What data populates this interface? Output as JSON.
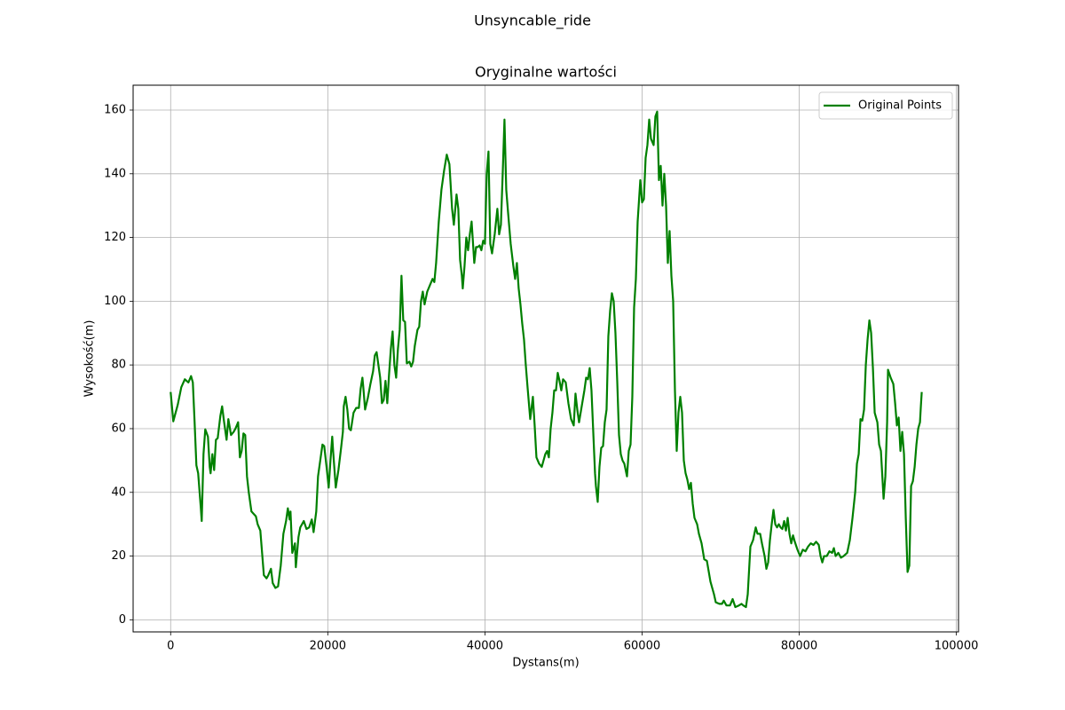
{
  "chart_data": {
    "type": "line",
    "suptitle": "Unsyncable_ride",
    "title": "Oryginalne wartości",
    "xlabel": "Dystans(m)",
    "ylabel": "Wysokość(m)",
    "xlim": [
      -4775,
      100275
    ],
    "ylim": [
      -3.8,
      167.8
    ],
    "xticks": [
      0,
      20000,
      40000,
      60000,
      80000,
      100000
    ],
    "yticks": [
      0,
      20,
      40,
      60,
      80,
      100,
      120,
      140,
      160
    ],
    "grid": true,
    "legend": "upper right",
    "x": [
      0,
      339,
      904,
      1356,
      1808,
      2260,
      2599,
      2825,
      3051,
      3277,
      3503,
      3842,
      3955,
      4181,
      4407,
      4746,
      4972,
      5085,
      5311,
      5537,
      5763,
      5989,
      6328,
      6554,
      6780,
      7119,
      7345,
      7684,
      8023,
      8249,
      8588,
      8814,
      9040,
      9266,
      9492,
      9718,
      9944,
      10283,
      10848,
      11074,
      11413,
      11639,
      11865,
      12204,
      12430,
      12769,
      12995,
      13334,
      13673,
      14012,
      14351,
      14690,
      14916,
      15142,
      15255,
      15481,
      15820,
      15933,
      16272,
      16498,
      16950,
      17289,
      17628,
      17967,
      18193,
      18532,
      18758,
      19097,
      19323,
      19549,
      19888,
      20114,
      20340,
      20566,
      20679,
      21018,
      21357,
      21696,
      21922,
      22035,
      22261,
      22487,
      22713,
      22939,
      23278,
      23617,
      23956,
      24182,
      24408,
      24521,
      24747,
      25086,
      25425,
      25764,
      25990,
      26216,
      26442,
      26668,
      26894,
      27120,
      27346,
      27572,
      27798,
      28024,
      28250,
      28476,
      28702,
      28928,
      29154,
      29380,
      29606,
      29832,
      30058,
      30397,
      30623,
      30849,
      31075,
      31414,
      31640,
      31866,
      32092,
      32318,
      32657,
      32996,
      33335,
      33561,
      33787,
      34126,
      34465,
      34804,
      35143,
      35482,
      35821,
      36047,
      36386,
      36612,
      36838,
      37064,
      37177,
      37403,
      37629,
      37855,
      38081,
      38307,
      38646,
      38872,
      39098,
      39324,
      39550,
      39776,
      40002,
      40228,
      40454,
      40680,
      40906,
      41245,
      41584,
      41810,
      42036,
      42262,
      42488,
      42714,
      42940,
      43279,
      43618,
      43844,
      44070,
      44296,
      44522,
      44748,
      44974,
      45200,
      45426,
      45765,
      46104,
      46330,
      46556,
      46895,
      47234,
      47460,
      47686,
      47912,
      48138,
      48364,
      48590,
      48816,
      49042,
      49268,
      49494,
      49720,
      49946,
      50285,
      50624,
      50963,
      51302,
      51528,
      51754,
      51980,
      52319,
      52658,
      52884,
      53110,
      53336,
      53562,
      53788,
      54014,
      54127,
      54353,
      54579,
      54805,
      55031,
      55257,
      55483,
      55709,
      55935,
      56161,
      56387,
      56613,
      56839,
      57065,
      57291,
      57517,
      57743,
      58082,
      58308,
      58534,
      58760,
      58986,
      59212,
      59438,
      59777,
      60003,
      60229,
      60455,
      60681,
      60907,
      61133,
      61472,
      61698,
      61924,
      62150,
      62376,
      62602,
      62828,
      63054,
      63280,
      63506,
      63732,
      63958,
      64184,
      64410,
      64636,
      64862,
      65088,
      65314,
      65540,
      65766,
      65992,
      66218,
      66444,
      66670,
      67009,
      67235,
      67574,
      67913,
      68252,
      68704,
      69156,
      69382,
      69834,
      70173,
      70399,
      70738,
      71190,
      71529,
      71868,
      72320,
      72659,
      72885,
      73224,
      73450,
      73789,
      74128,
      74467,
      74693,
      75032,
      75258,
      75597,
      75823,
      76049,
      76275,
      76501,
      76727,
      76953,
      77179,
      77405,
      77631,
      77857,
      78083,
      78309,
      78535,
      78761,
      78987,
      79213,
      79439,
      79778,
      80117,
      80456,
      80795,
      81134,
      81473,
      81812,
      82151,
      82490,
      82716,
      82942,
      83168,
      83507,
      83846,
      84185,
      84411,
      84637,
      84976,
      85315,
      85654,
      86106,
      86445,
      86784,
      87123,
      87349,
      87575,
      87801,
      88027,
      88253,
      88479,
      88705,
      88931,
      89157,
      89383,
      89609,
      89948,
      90174,
      90400,
      90739,
      90965,
      91191,
      91304,
      91643,
      91982,
      92208,
      92434,
      92660,
      92886,
      93112,
      93338,
      93564,
      93790,
      94016,
      94242,
      94468,
      94694,
      94920,
      95146,
      95372,
      95485,
      95598
    ],
    "series": [
      {
        "name": "Original Points",
        "color": "#008000",
        "values": [
          71.5,
          62.3,
          67.5,
          73,
          75.5,
          74.5,
          76.5,
          74.5,
          62,
          48.5,
          46,
          35,
          31,
          52,
          59.8,
          57.5,
          48,
          46,
          52,
          47,
          56.5,
          57,
          64,
          67,
          62.5,
          56.5,
          63,
          58,
          59,
          60,
          62,
          51,
          53,
          58.5,
          58,
          45,
          40,
          34,
          32.5,
          30,
          28,
          21,
          14,
          13,
          14,
          16,
          11.5,
          10,
          10.5,
          17,
          27,
          31,
          35,
          31.5,
          34,
          21,
          24,
          16.5,
          26,
          29,
          31,
          28.5,
          29,
          31.5,
          27.5,
          34,
          45,
          51,
          55,
          54.5,
          47,
          41.5,
          50,
          57.5,
          53,
          41.5,
          47,
          54,
          59,
          67,
          70,
          66,
          60,
          59.5,
          65,
          66.5,
          66.5,
          72.5,
          76,
          73,
          66,
          69.5,
          74,
          78,
          83,
          84,
          80,
          76,
          68,
          69,
          75,
          68,
          77,
          85,
          90.5,
          80,
          76,
          85,
          91,
          108,
          94,
          93.5,
          80.5,
          81,
          79.5,
          81,
          86,
          91,
          92,
          100,
          103,
          99,
          103,
          105,
          107,
          106,
          112,
          125,
          135,
          141,
          146,
          143,
          129,
          124,
          133.5,
          129,
          113,
          108,
          104,
          111,
          120,
          116,
          121,
          125,
          112,
          117,
          117,
          117.5,
          116,
          119,
          118,
          140,
          147,
          118,
          115,
          121,
          129,
          121,
          124,
          140,
          157,
          135,
          128,
          118,
          111,
          107,
          112,
          104,
          99,
          93,
          88,
          80,
          73,
          63,
          70,
          61,
          51,
          49,
          48,
          50,
          52,
          53,
          51,
          60,
          65,
          72,
          72,
          77.5,
          75,
          72,
          75.5,
          74.5,
          68,
          63,
          61,
          71,
          66,
          62,
          67,
          72,
          76,
          75.5,
          79,
          72,
          59,
          46,
          42,
          37,
          48,
          54,
          54.5,
          62,
          66,
          89,
          97,
          102.5,
          100,
          90,
          75,
          58,
          52,
          50,
          49,
          45,
          53,
          55,
          70,
          98,
          107,
          125,
          138,
          131,
          132,
          145,
          149,
          157,
          151,
          149,
          158,
          159.5,
          138,
          142.5,
          130,
          140,
          130,
          112,
          122,
          108,
          100,
          72,
          53,
          65,
          70,
          65,
          50,
          46,
          44,
          41,
          43,
          36.5,
          32,
          30,
          27,
          24,
          19,
          18.5,
          12,
          8,
          5.5,
          5,
          5,
          6,
          4.5,
          4.5,
          6.5,
          4,
          4.5,
          5,
          4.5,
          4,
          8,
          23,
          25,
          29,
          27,
          27,
          24,
          20,
          16,
          18,
          25,
          30,
          34.5,
          30,
          29,
          30,
          29,
          28.5,
          31,
          28,
          32,
          27,
          24,
          26.5,
          24.5,
          22,
          20,
          22,
          21.5,
          23,
          24,
          23.5,
          24.5,
          23.5,
          20,
          18,
          20,
          20,
          21.5,
          21,
          22.5,
          20,
          21,
          19.5,
          20,
          21,
          25,
          32,
          40,
          49,
          52,
          63,
          62.5,
          66,
          80,
          88,
          94,
          90,
          79,
          65,
          62,
          55,
          53,
          38,
          45,
          62,
          78.5,
          76,
          74,
          68,
          61,
          63.5,
          53,
          59,
          52,
          32,
          15,
          17,
          42,
          43.5,
          48,
          55,
          60,
          62,
          67,
          71.5
        ]
      }
    ]
  }
}
